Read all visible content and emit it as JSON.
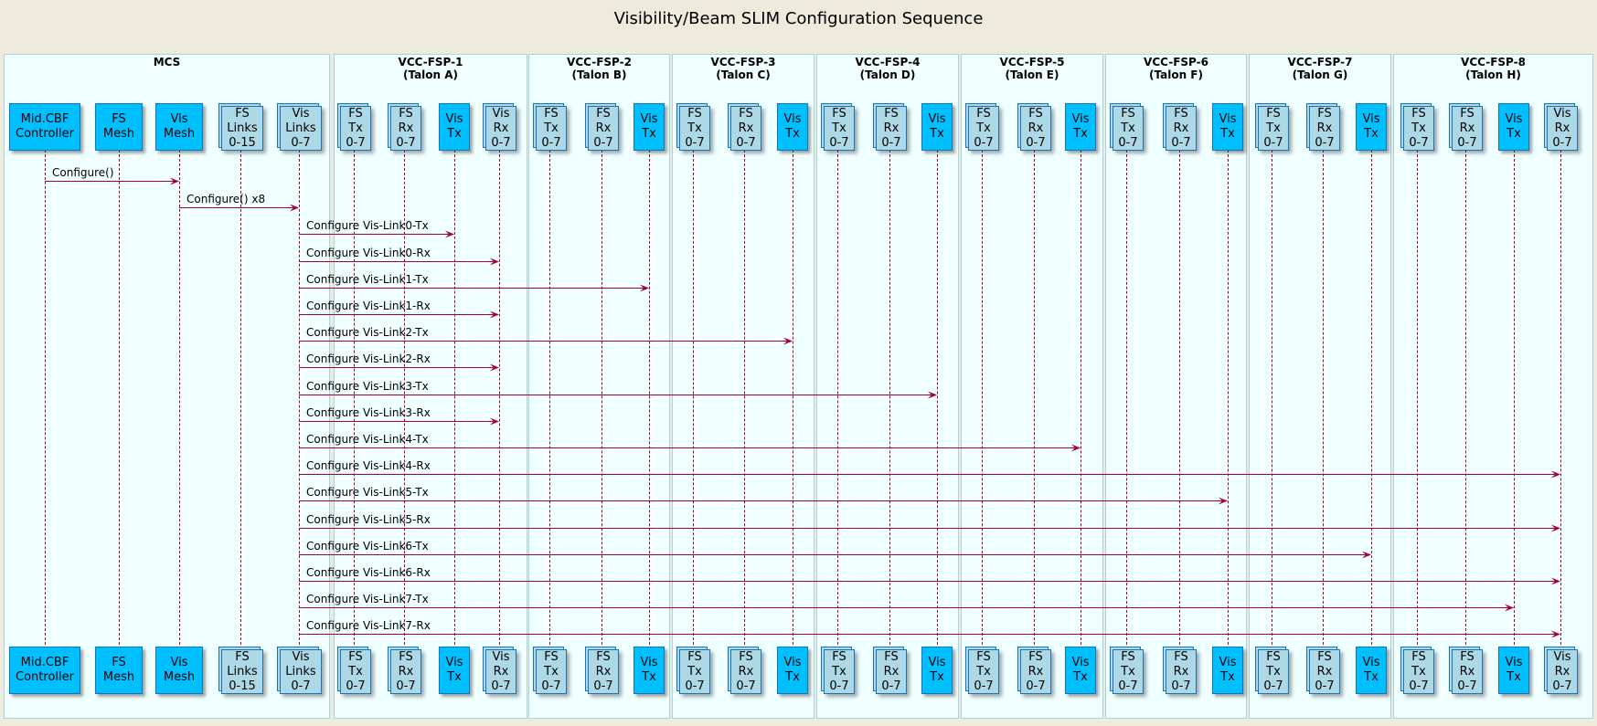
{
  "title": "Visibility/Beam SLIM Configuration Sequence",
  "colors": {
    "background": "#eeebdc",
    "box_fill": "#f0ffff",
    "box_border": "#a8d4e0",
    "single_participant": "#00bfff",
    "multi_participant": "#add8e6",
    "arrow": "#a80036",
    "participant_border": "#1a73b8"
  },
  "boxes": [
    {
      "title": "MCS"
    },
    {
      "title": "VCC-FSP-1\n(Talon A)"
    },
    {
      "title": "VCC-FSP-2\n(Talon B)"
    },
    {
      "title": "VCC-FSP-3\n(Talon C)"
    },
    {
      "title": "VCC-FSP-4\n(Talon D)"
    },
    {
      "title": "VCC-FSP-5\n(Talon E)"
    },
    {
      "title": "VCC-FSP-6\n(Talon F)"
    },
    {
      "title": "VCC-FSP-7\n(Talon G)"
    },
    {
      "title": "VCC-FSP-8\n(Talon H)"
    }
  ],
  "participants": [
    {
      "id": "ctrl",
      "label": "Mid.CBF\nController",
      "multi": false
    },
    {
      "id": "fsmesh",
      "label": "FS\nMesh",
      "multi": false
    },
    {
      "id": "vismesh",
      "label": "Vis\nMesh",
      "multi": false
    },
    {
      "id": "fslinks",
      "label": "FS\nLinks\n0-15",
      "multi": true
    },
    {
      "id": "vislinks",
      "label": "Vis\nLinks\n0-7",
      "multi": true
    },
    {
      "id": "a_fstx",
      "label": "FS\nTx\n0-7",
      "multi": true
    },
    {
      "id": "a_fsrx",
      "label": "FS\nRx\n0-7",
      "multi": true
    },
    {
      "id": "a_vistx",
      "label": "Vis\nTx",
      "multi": false
    },
    {
      "id": "a_visrx",
      "label": "Vis\nRx\n0-7",
      "multi": true
    },
    {
      "id": "b_fstx",
      "label": "FS\nTx\n0-7",
      "multi": true
    },
    {
      "id": "b_fsrx",
      "label": "FS\nRx\n0-7",
      "multi": true
    },
    {
      "id": "b_vistx",
      "label": "Vis\nTx",
      "multi": false
    },
    {
      "id": "c_fstx",
      "label": "FS\nTx\n0-7",
      "multi": true
    },
    {
      "id": "c_fsrx",
      "label": "FS\nRx\n0-7",
      "multi": true
    },
    {
      "id": "c_vistx",
      "label": "Vis\nTx",
      "multi": false
    },
    {
      "id": "d_fstx",
      "label": "FS\nTx\n0-7",
      "multi": true
    },
    {
      "id": "d_fsrx",
      "label": "FS\nRx\n0-7",
      "multi": true
    },
    {
      "id": "d_vistx",
      "label": "Vis\nTx",
      "multi": false
    },
    {
      "id": "e_fstx",
      "label": "FS\nTx\n0-7",
      "multi": true
    },
    {
      "id": "e_fsrx",
      "label": "FS\nRx\n0-7",
      "multi": true
    },
    {
      "id": "e_vistx",
      "label": "Vis\nTx",
      "multi": false
    },
    {
      "id": "f_fstx",
      "label": "FS\nTx\n0-7",
      "multi": true
    },
    {
      "id": "f_fsrx",
      "label": "FS\nRx\n0-7",
      "multi": true
    },
    {
      "id": "f_vistx",
      "label": "Vis\nTx",
      "multi": false
    },
    {
      "id": "g_fstx",
      "label": "FS\nTx\n0-7",
      "multi": true
    },
    {
      "id": "g_fsrx",
      "label": "FS\nRx\n0-7",
      "multi": true
    },
    {
      "id": "g_vistx",
      "label": "Vis\nTx",
      "multi": false
    },
    {
      "id": "h_fstx",
      "label": "FS\nTx\n0-7",
      "multi": true
    },
    {
      "id": "h_fsrx",
      "label": "FS\nRx\n0-7",
      "multi": true
    },
    {
      "id": "h_vistx",
      "label": "Vis\nTx",
      "multi": false
    },
    {
      "id": "h_visrx",
      "label": "Vis\nRx\n0-7",
      "multi": true
    }
  ],
  "messages": [
    {
      "from": "ctrl",
      "to": "vismesh",
      "label": "Configure()"
    },
    {
      "from": "vismesh",
      "to": "vislinks",
      "label": "Configure() x8"
    },
    {
      "from": "vislinks",
      "to": "a_vistx",
      "label": "Configure Vis-Link0-Tx"
    },
    {
      "from": "vislinks",
      "to": "a_visrx",
      "label": "Configure Vis-Link0-Rx"
    },
    {
      "from": "vislinks",
      "to": "b_vistx",
      "label": "Configure Vis-Link1-Tx"
    },
    {
      "from": "vislinks",
      "to": "a_visrx",
      "label": "Configure Vis-Link1-Rx"
    },
    {
      "from": "vislinks",
      "to": "c_vistx",
      "label": "Configure Vis-Link2-Tx"
    },
    {
      "from": "vislinks",
      "to": "a_visrx",
      "label": "Configure Vis-Link2-Rx"
    },
    {
      "from": "vislinks",
      "to": "d_vistx",
      "label": "Configure Vis-Link3-Tx"
    },
    {
      "from": "vislinks",
      "to": "a_visrx",
      "label": "Configure Vis-Link3-Rx"
    },
    {
      "from": "vislinks",
      "to": "e_vistx",
      "label": "Configure Vis-Link4-Tx"
    },
    {
      "from": "vislinks",
      "to": "h_visrx",
      "label": "Configure Vis-Link4-Rx"
    },
    {
      "from": "vislinks",
      "to": "f_vistx",
      "label": "Configure Vis-Link5-Tx"
    },
    {
      "from": "vislinks",
      "to": "h_visrx",
      "label": "Configure Vis-Link5-Rx"
    },
    {
      "from": "vislinks",
      "to": "g_vistx",
      "label": "Configure Vis-Link6-Tx"
    },
    {
      "from": "vislinks",
      "to": "h_visrx",
      "label": "Configure Vis-Link6-Rx"
    },
    {
      "from": "vislinks",
      "to": "h_vistx",
      "label": "Configure Vis-Link7-Tx"
    },
    {
      "from": "vislinks",
      "to": "h_visrx",
      "label": "Configure Vis-Link7-Rx"
    }
  ]
}
